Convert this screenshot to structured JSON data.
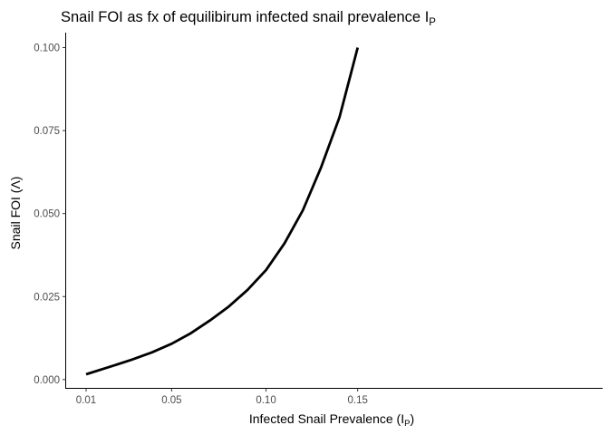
{
  "chart_data": {
    "type": "line",
    "title": "Snail FOI as fx of equilibirum infected snail prevalence I",
    "title_subscript": "P",
    "xlabel": "Infected Snail Prevalence (I",
    "xlabel_subscript": "P",
    "xlabel_suffix": ")",
    "ylabel": "Snail FOI (Λ)",
    "xlim": [
      0.0,
      0.16
    ],
    "ylim": [
      -0.0025,
      0.1045
    ],
    "x_ticks": [
      {
        "value": 0.01,
        "label": "0.01"
      },
      {
        "value": 0.05,
        "label": "0.05"
      },
      {
        "value": 0.1,
        "label": "0.10"
      },
      {
        "value": 0.15,
        "label": "0.15"
      }
    ],
    "y_ticks": [
      {
        "value": 0.0,
        "label": "0.000"
      },
      {
        "value": 0.025,
        "label": "0.025"
      },
      {
        "value": 0.05,
        "label": "0.050"
      },
      {
        "value": 0.075,
        "label": "0.075"
      },
      {
        "value": 0.1,
        "label": "0.100"
      }
    ],
    "x_scale": "log",
    "grid": false,
    "legend": "none",
    "series": [
      {
        "color": "#000000",
        "x": [
          0.01,
          0.02,
          0.03,
          0.04,
          0.05,
          0.06,
          0.07,
          0.08,
          0.09,
          0.1,
          0.11,
          0.12,
          0.13,
          0.14,
          0.15
        ],
        "y": [
          0.0016,
          0.0039,
          0.006,
          0.0082,
          0.0108,
          0.014,
          0.0178,
          0.022,
          0.027,
          0.033,
          0.041,
          0.051,
          0.064,
          0.079,
          0.1
        ]
      }
    ]
  }
}
